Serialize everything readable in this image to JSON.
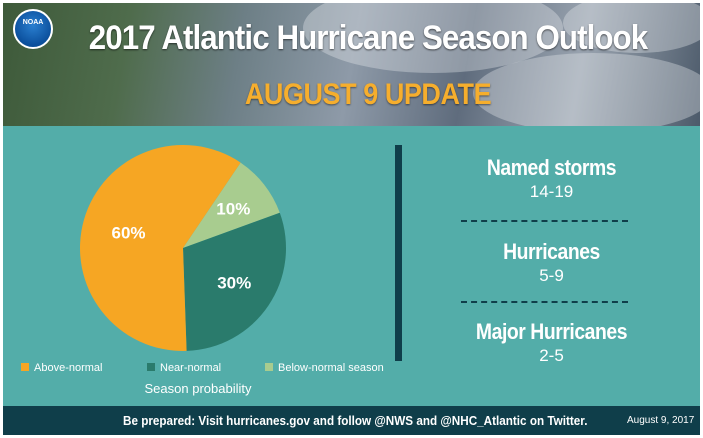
{
  "header": {
    "logo_text": "NOAA",
    "title": "2017 Atlantic Hurricane Season Outlook",
    "subtitle": "AUGUST 9 UPDATE"
  },
  "chart_data": {
    "type": "pie",
    "title": "",
    "caption": "Season probability",
    "slices": [
      {
        "label": "Above-normal",
        "value": 60,
        "display": "60%",
        "color": "#f6a623"
      },
      {
        "label": "Near-normal",
        "value": 30,
        "display": "30%",
        "color": "#2a7b6c"
      },
      {
        "label": "Below-normal season",
        "value": 10,
        "display": "10%",
        "color": "#a8cc8f"
      }
    ],
    "legend_position": "bottom"
  },
  "stats": [
    {
      "label": "Named storms",
      "value": "14-19"
    },
    {
      "label": "Hurricanes",
      "value": "5-9"
    },
    {
      "label": "Major Hurricanes",
      "value": "2-5"
    }
  ],
  "footer": {
    "text": "Be prepared: Visit hurricanes.gov and follow @NWS and @NHC_Atlantic on Twitter.",
    "date": "August 9, 2017"
  },
  "colors": {
    "panel_bg": "#53ada9",
    "divider": "#0f3e4a",
    "subtitle": "#f6ae2d"
  }
}
